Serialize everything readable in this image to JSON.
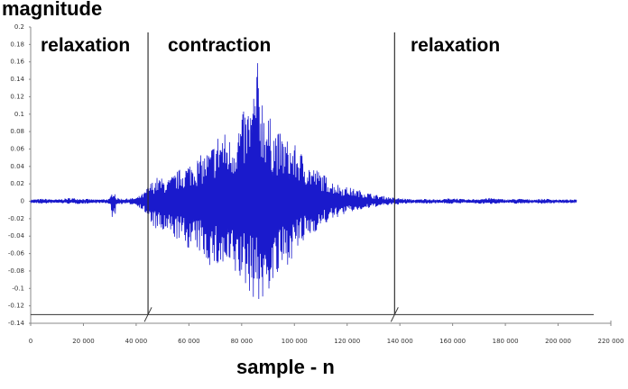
{
  "chart_data": {
    "type": "line",
    "title": "",
    "ylabel": "magnitude",
    "xlabel": "sample - n",
    "xlim": [
      0,
      220000
    ],
    "ylim": [
      -0.14,
      0.2
    ],
    "x_ticks": [
      0,
      20000,
      40000,
      60000,
      80000,
      100000,
      120000,
      140000,
      160000,
      180000,
      200000,
      220000
    ],
    "x_tick_labels": [
      "0",
      "20 000",
      "40 000",
      "60 000",
      "80 000",
      "100 000",
      "120 000",
      "140 000",
      "160 000",
      "180 000",
      "200 000",
      "220 000"
    ],
    "y_ticks": [
      0.2,
      0.18,
      0.16,
      0.14,
      0.12,
      0.1,
      0.08,
      0.06,
      0.04,
      0.02,
      0,
      -0.02,
      -0.04,
      -0.06,
      -0.08,
      -0.1,
      -0.12,
      -0.14
    ],
    "y_tick_labels": [
      "0.2",
      "0.18",
      "0.16",
      "0.14",
      "0.12",
      "0.1",
      "0.08",
      "0.06",
      "0.04",
      "0.02",
      "0",
      "-0.02",
      "-0.04",
      "-0.06",
      "-0.08",
      "-0.1",
      "-0.12",
      "-0.14"
    ],
    "grid": false,
    "series_color": "#1a1acc",
    "series": [
      {
        "name": "",
        "x": [
          0,
          5000,
          10000,
          15000,
          20000,
          25000,
          30000,
          31500,
          32500,
          35000,
          40000,
          43000,
          45000,
          48000,
          52000,
          56000,
          60000,
          64000,
          68000,
          72000,
          76000,
          80000,
          84000,
          86000,
          88000,
          90000,
          94000,
          98000,
          102000,
          106000,
          110000,
          114000,
          118000,
          122000,
          126000,
          130000,
          134000,
          138000,
          142000,
          146000,
          150000,
          155000,
          160000,
          165000,
          170000,
          175000,
          180000,
          185000,
          190000,
          195000,
          200000,
          207000
        ],
        "y_max": [
          0.002,
          0.003,
          0.002,
          0.004,
          0.003,
          0.002,
          0.003,
          0.016,
          0.004,
          0.003,
          0.004,
          0.01,
          0.02,
          0.028,
          0.025,
          0.036,
          0.045,
          0.052,
          0.06,
          0.085,
          0.072,
          0.1,
          0.118,
          0.162,
          0.125,
          0.1,
          0.08,
          0.07,
          0.06,
          0.042,
          0.034,
          0.024,
          0.018,
          0.015,
          0.012,
          0.008,
          0.006,
          0.004,
          0.003,
          0.002,
          0.003,
          0.002,
          0.004,
          0.002,
          0.003,
          0.004,
          0.002,
          0.003,
          0.002,
          0.003,
          0.002,
          0.002
        ],
        "y_min": [
          -0.002,
          -0.003,
          -0.002,
          -0.003,
          -0.003,
          -0.002,
          -0.003,
          -0.03,
          -0.004,
          -0.003,
          -0.004,
          -0.012,
          -0.024,
          -0.035,
          -0.04,
          -0.045,
          -0.055,
          -0.06,
          -0.075,
          -0.08,
          -0.085,
          -0.095,
          -0.11,
          -0.115,
          -0.122,
          -0.105,
          -0.09,
          -0.07,
          -0.055,
          -0.04,
          -0.03,
          -0.022,
          -0.016,
          -0.012,
          -0.01,
          -0.007,
          -0.005,
          -0.004,
          -0.003,
          -0.002,
          -0.003,
          -0.002,
          -0.003,
          -0.002,
          -0.003,
          -0.003,
          -0.002,
          -0.003,
          -0.002,
          -0.003,
          -0.002,
          -0.002
        ]
      }
    ],
    "reference_line": {
      "y": -0.13
    },
    "vertical_lines": [
      {
        "x": 44500,
        "label": "relaxation",
        "label_side": "left"
      },
      {
        "x": 138000,
        "label": "relaxation",
        "label_side": "right"
      }
    ],
    "region_labels": [
      "relaxation",
      "contraction",
      "relaxation"
    ]
  }
}
